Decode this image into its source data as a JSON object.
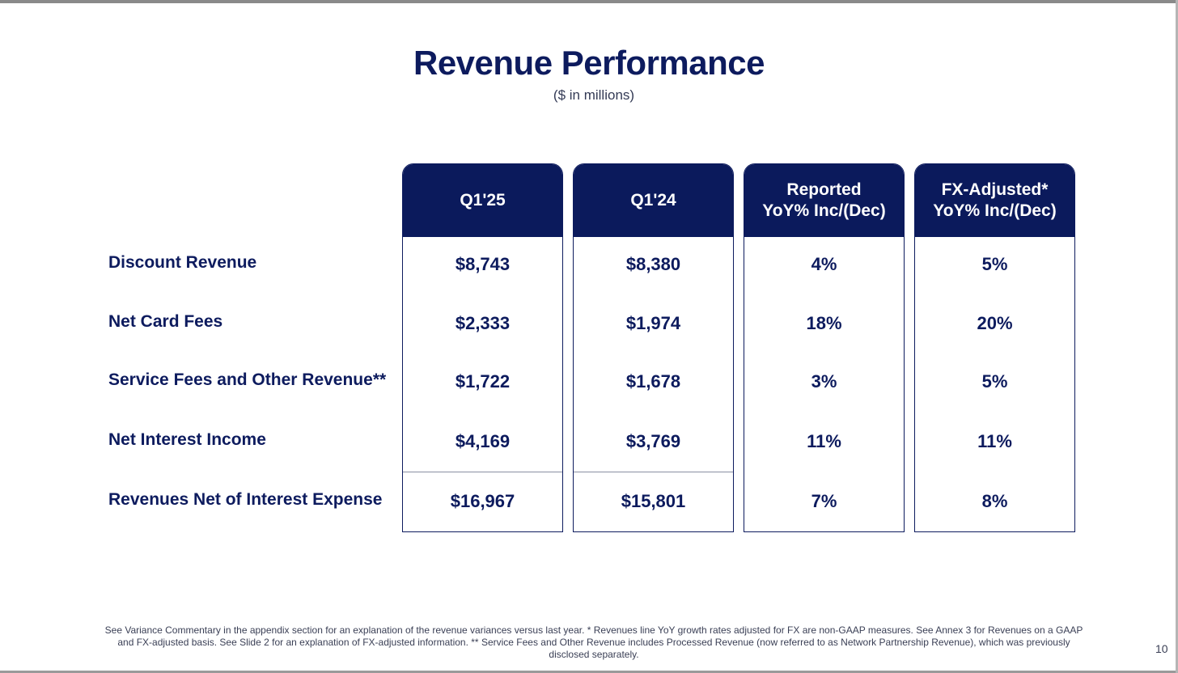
{
  "title": "Revenue Performance",
  "subtitle": "($ in millions)",
  "columns": [
    {
      "line1": "Q1'25",
      "line2": ""
    },
    {
      "line1": "Q1'24",
      "line2": ""
    },
    {
      "line1": "Reported",
      "line2": "YoY% Inc/(Dec)"
    },
    {
      "line1": "FX-Adjusted*",
      "line2": "YoY% Inc/(Dec)"
    }
  ],
  "rows": [
    {
      "label": "Discount Revenue",
      "values": [
        "$8,743",
        "$8,380",
        "4%",
        "5%"
      ]
    },
    {
      "label": "Net Card Fees",
      "values": [
        "$2,333",
        "$1,974",
        "18%",
        "20%"
      ]
    },
    {
      "label": "Service Fees and Other Revenue**",
      "values": [
        "$1,722",
        "$1,678",
        "3%",
        "5%"
      ]
    },
    {
      "label": "Net Interest Income",
      "values": [
        "$4,169",
        "$3,769",
        "11%",
        "11%"
      ]
    },
    {
      "label": "Revenues Net of Interest Expense",
      "values": [
        "$16,967",
        "$15,801",
        "7%",
        "8%"
      ]
    }
  ],
  "footnote": "See Variance Commentary in the appendix section for an explanation of the revenue variances versus last year. * Revenues line YoY growth rates adjusted for FX are non-GAAP measures. See Annex 3 for Revenues on a GAAP and FX-adjusted basis. See Slide 2 for an explanation of FX-adjusted information. ** Service Fees and Other Revenue includes Processed Revenue (now referred to as Network Partnership Revenue), which was previously disclosed separately.",
  "page_number": "10",
  "colors": {
    "navy": "#0b1a5c",
    "text": "#0d1b5e"
  }
}
